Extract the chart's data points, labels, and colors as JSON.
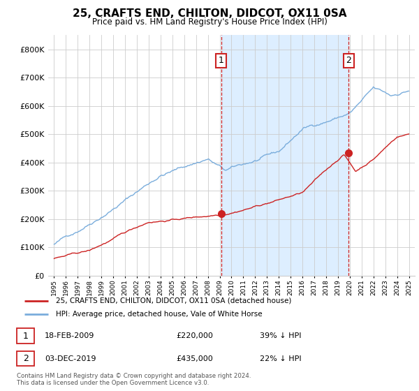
{
  "title": "25, CRAFTS END, CHILTON, DIDCOT, OX11 0SA",
  "subtitle": "Price paid vs. HM Land Registry's House Price Index (HPI)",
  "legend_label_red": "25, CRAFTS END, CHILTON, DIDCOT, OX11 0SA (detached house)",
  "legend_label_blue": "HPI: Average price, detached house, Vale of White Horse",
  "footer": "Contains HM Land Registry data © Crown copyright and database right 2024.\nThis data is licensed under the Open Government Licence v3.0.",
  "marker1_date": "18-FEB-2009",
  "marker1_price": "£220,000",
  "marker1_hpi": "39% ↓ HPI",
  "marker1_x": 2009.13,
  "marker1_y": 220000,
  "marker2_date": "03-DEC-2019",
  "marker2_price": "£435,000",
  "marker2_hpi": "22% ↓ HPI",
  "marker2_x": 2019.92,
  "marker2_y": 435000,
  "red_color": "#cc2222",
  "blue_color": "#7aaddc",
  "shade_color": "#ddeeff",
  "marker_box_color": "#cc2222",
  "ylim": [
    0,
    850000
  ],
  "xlim": [
    1994.5,
    2025.5
  ],
  "yticks": [
    0,
    100000,
    200000,
    300000,
    400000,
    500000,
    600000,
    700000,
    800000
  ],
  "ytick_labels": [
    "£0",
    "£100K",
    "£200K",
    "£300K",
    "£400K",
    "£500K",
    "£600K",
    "£700K",
    "£800K"
  ],
  "xticks": [
    1995,
    1996,
    1997,
    1998,
    1999,
    2000,
    2001,
    2002,
    2003,
    2004,
    2005,
    2006,
    2007,
    2008,
    2009,
    2010,
    2011,
    2012,
    2013,
    2014,
    2015,
    2016,
    2017,
    2018,
    2019,
    2020,
    2021,
    2022,
    2023,
    2024,
    2025
  ]
}
